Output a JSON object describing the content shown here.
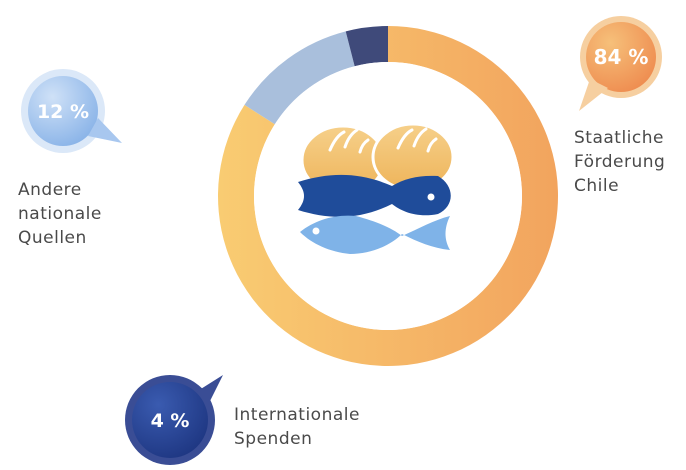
{
  "chart_data": {
    "type": "pie",
    "title": "",
    "slices": [
      {
        "label_lines": [
          "Staatliche",
          "Förderung",
          "Chile"
        ],
        "value": 84,
        "value_label": "84 %",
        "color": "#f5a85a"
      },
      {
        "label_lines": [
          "Andere",
          "nationale",
          "Quellen"
        ],
        "value": 12,
        "value_label": "12 %",
        "color": "#9db7d6"
      },
      {
        "label_lines": [
          "Internationale",
          "Spenden"
        ],
        "value": 4,
        "value_label": "4 %",
        "color": "#3f4a7a"
      }
    ]
  },
  "center_icon": "bread-and-fish-icon",
  "colors": {
    "orange_light": "#f8c46c",
    "orange_dark": "#f2a45e",
    "blue_light": "#a9c3e4",
    "blue_dark": "#2b3f86",
    "fish_dark": "#1f4c9a",
    "fish_light": "#7fb3e8",
    "bread": "#f2c575",
    "text": "#4a4a4a"
  }
}
